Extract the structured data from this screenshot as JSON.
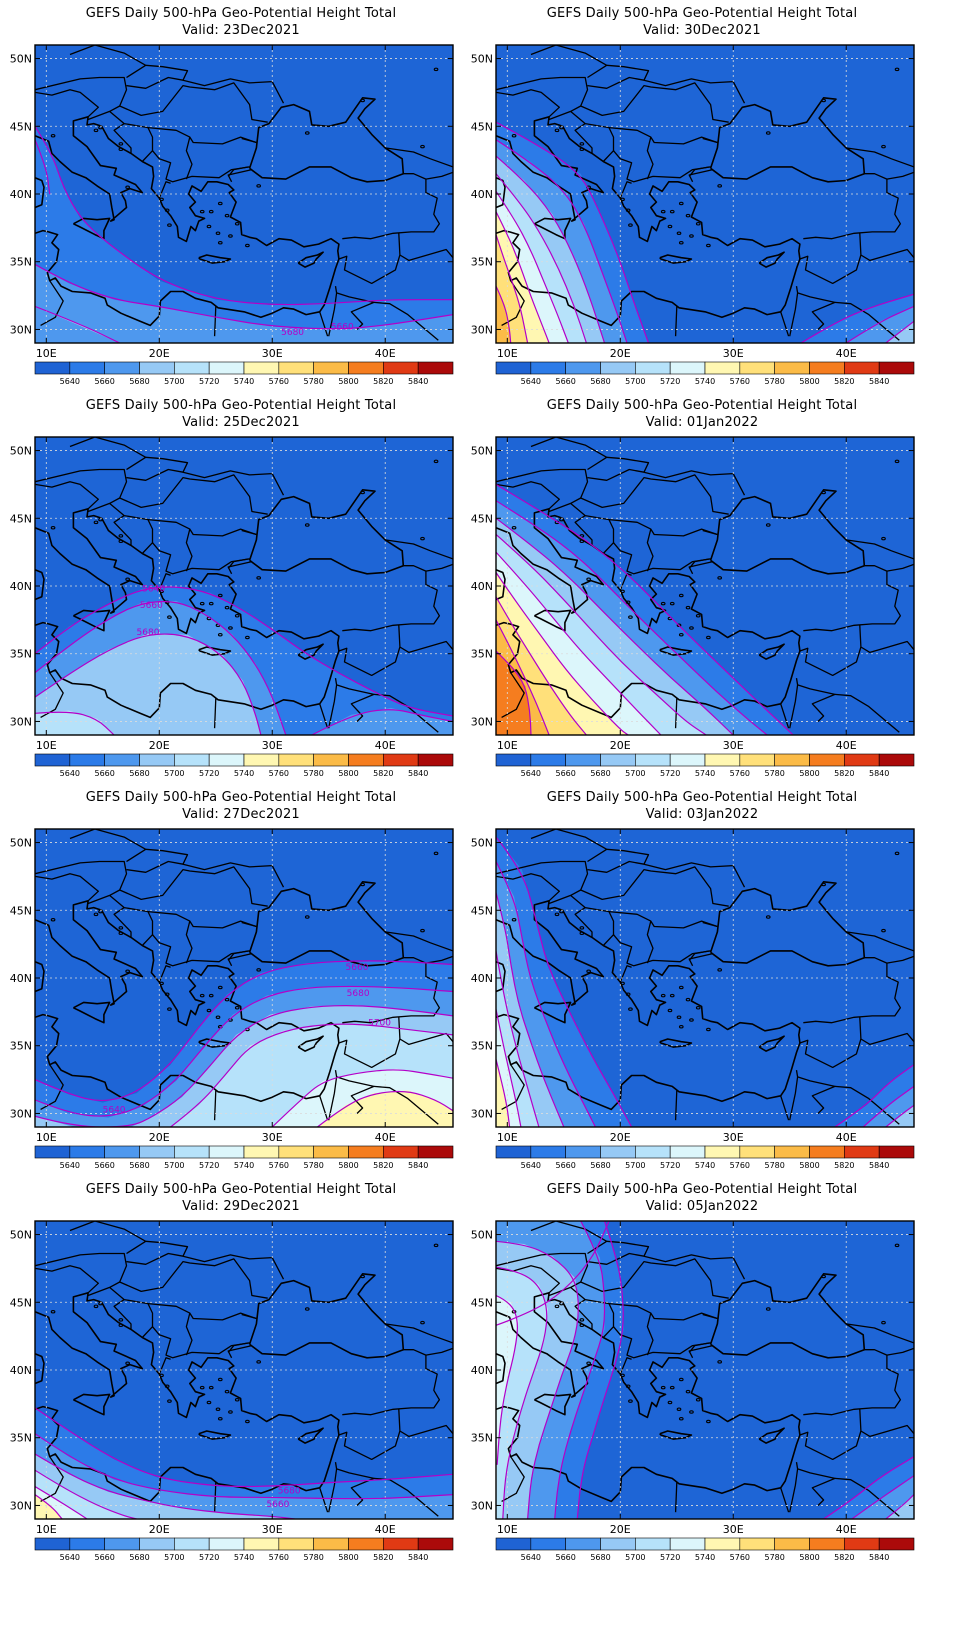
{
  "map": {
    "title": "GEFS Daily 500-hPa Geo-Potential Height Total",
    "lat_ticks": [
      "50N",
      "45N",
      "40N",
      "35N",
      "30N"
    ],
    "lon_ticks": [
      "10E",
      "20E",
      "30E",
      "40E"
    ],
    "extent": {
      "lon_min": 9,
      "lon_max": 46,
      "lat_min": 29,
      "lat_max": 51
    },
    "colorbar": {
      "labels": [
        "5640",
        "5660",
        "5680",
        "5700",
        "5720",
        "5740",
        "5760",
        "5780",
        "5800",
        "5820",
        "5840"
      ],
      "colors": [
        "#1f63d4",
        "#2c7be8",
        "#4e98ee",
        "#96c9f5",
        "#b6e2fa",
        "#dcf6fb",
        "#fff7b2",
        "#ffe07a",
        "#fbbb47",
        "#f57d1f",
        "#e03a14",
        "#ab0a0a"
      ],
      "base_fill": "#1e65d6",
      "contour_color": "#b400c8"
    },
    "panels": [
      {
        "valid": "Valid: 23Dec2021",
        "contour_labels": [
          "5660",
          "5680"
        ]
      },
      {
        "valid": "Valid: 30Dec2021",
        "contour_labels": []
      },
      {
        "valid": "Valid: 25Dec2021",
        "contour_labels": [
          "5640",
          "5660",
          "5680"
        ]
      },
      {
        "valid": "Valid: 01Jan2022",
        "contour_labels": []
      },
      {
        "valid": "Valid: 27Dec2021",
        "contour_labels": [
          "5660",
          "5680",
          "5700",
          "5640"
        ]
      },
      {
        "valid": "Valid: 03Jan2022",
        "contour_labels": []
      },
      {
        "valid": "Valid: 29Dec2021",
        "contour_labels": [
          "5680",
          "5660"
        ]
      },
      {
        "valid": "Valid: 05Jan2022",
        "contour_labels": []
      }
    ]
  }
}
